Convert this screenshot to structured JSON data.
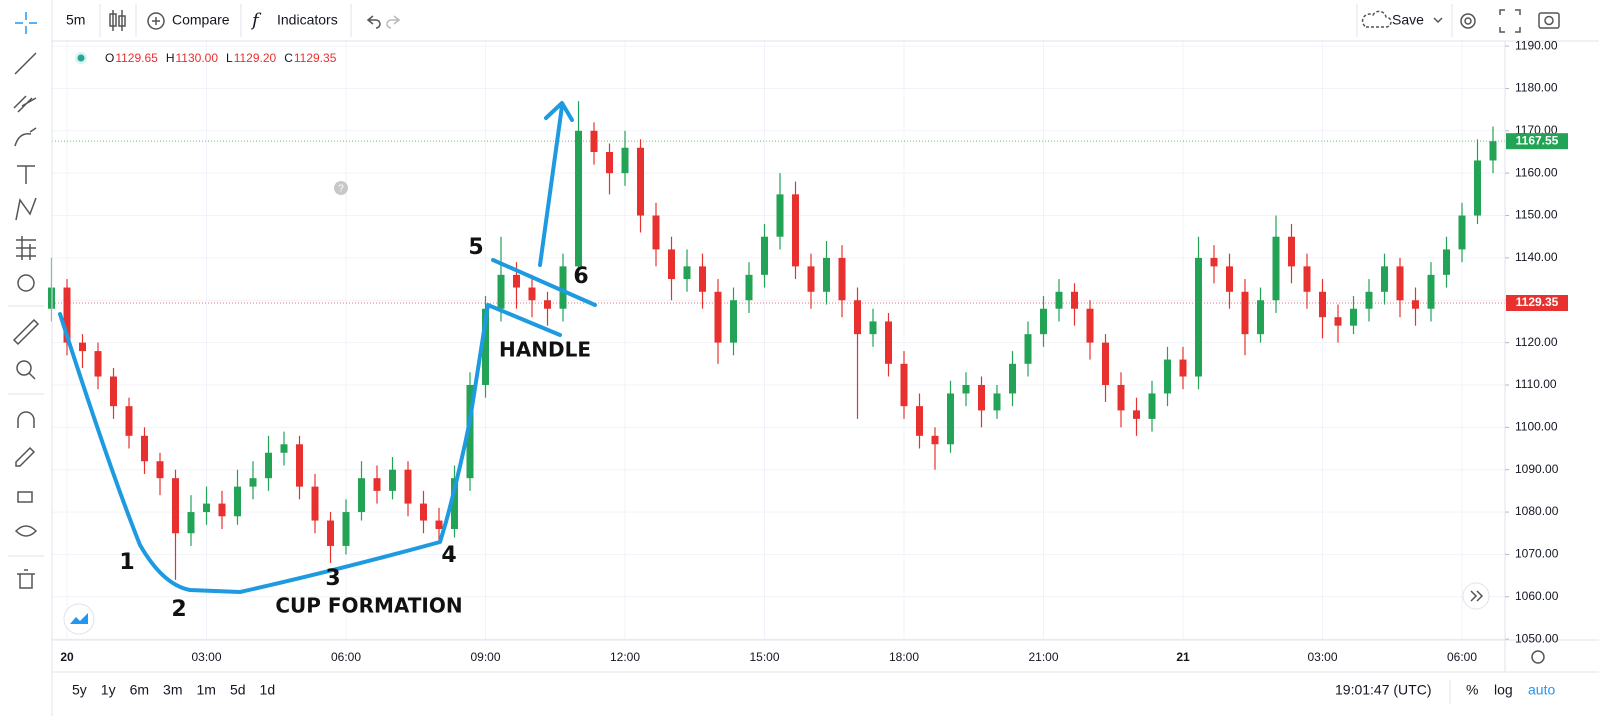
{
  "chart_data": {
    "type": "candlestick",
    "categories": [
      null,
      "20",
      null,
      null,
      null,
      null,
      null,
      null,
      null,
      null,
      "03:00",
      null,
      null,
      null,
      null,
      null,
      null,
      null,
      null,
      "06:00",
      null,
      null,
      null,
      null,
      null,
      null,
      null,
      null,
      "09:00",
      null,
      null,
      null,
      null,
      null,
      null,
      null,
      null,
      "12:00",
      null,
      null,
      null,
      null,
      null,
      null,
      null,
      null,
      "15:00",
      null,
      null,
      null,
      null,
      null,
      null,
      null,
      null,
      "18:00",
      null,
      null,
      null,
      null,
      null,
      null,
      null,
      null,
      "21:00",
      null,
      null,
      null,
      null,
      null,
      null,
      null,
      null,
      "21",
      null,
      null,
      null,
      null,
      null,
      null,
      null,
      null,
      "03:00",
      null,
      null,
      null,
      null,
      null,
      null,
      null,
      null,
      "06:00",
      null,
      null
    ],
    "open": [
      1128,
      1133,
      1120,
      1118,
      1112,
      1105,
      1098,
      1092,
      1088,
      1075,
      1080,
      1082,
      1079,
      1086,
      1088,
      1094,
      1096,
      1086,
      1078,
      1072,
      1080,
      1088,
      1085,
      1090,
      1082,
      1078,
      1076,
      1088,
      1110,
      1128,
      1136,
      1133,
      1130,
      1128,
      1138,
      1170,
      1165,
      1160,
      1166,
      1150,
      1142,
      1135,
      1138,
      1132,
      1120,
      1130,
      1136,
      1145,
      1155,
      1138,
      1132,
      1140,
      1130,
      1122,
      1125,
      1115,
      1105,
      1098,
      1096,
      1108,
      1110,
      1104,
      1108,
      1115,
      1122,
      1128,
      1132,
      1128,
      1120,
      1110,
      1104,
      1102,
      1108,
      1116,
      1112,
      1140,
      1138,
      1132,
      1122,
      1130,
      1145,
      1138,
      1132,
      1126,
      1124,
      1128,
      1132,
      1138,
      1130,
      1128,
      1136,
      1142,
      1150,
      1163
    ],
    "high": [
      1140,
      1135,
      1122,
      1120,
      1114,
      1107,
      1100,
      1094,
      1090,
      1084,
      1086,
      1085,
      1090,
      1092,
      1098,
      1099,
      1098,
      1089,
      1080,
      1083,
      1092,
      1091,
      1093,
      1092,
      1085,
      1081,
      1091,
      1113,
      1131,
      1145,
      1139,
      1136,
      1132,
      1141,
      1177,
      1172,
      1167,
      1170,
      1168,
      1153,
      1145,
      1142,
      1141,
      1135,
      1133,
      1139,
      1148,
      1160,
      1158,
      1141,
      1144,
      1143,
      1133,
      1128,
      1127,
      1118,
      1108,
      1100,
      1111,
      1113,
      1112,
      1110,
      1118,
      1125,
      1131,
      1135,
      1134,
      1130,
      1122,
      1113,
      1107,
      1111,
      1119,
      1119,
      1145,
      1143,
      1141,
      1135,
      1133,
      1150,
      1148,
      1141,
      1135,
      1129,
      1131,
      1135,
      1141,
      1140,
      1133,
      1139,
      1145,
      1153,
      1168,
      1171
    ],
    "low": [
      1125,
      1117,
      1114,
      1109,
      1102,
      1095,
      1089,
      1084,
      1064,
      1072,
      1077,
      1076,
      1077,
      1083,
      1085,
      1091,
      1083,
      1075,
      1068,
      1070,
      1078,
      1082,
      1083,
      1079,
      1075,
      1073,
      1074,
      1085,
      1107,
      1125,
      1128,
      1126,
      1124,
      1125,
      1135,
      1162,
      1155,
      1157,
      1146,
      1138,
      1130,
      1132,
      1128,
      1115,
      1117,
      1127,
      1133,
      1142,
      1135,
      1128,
      1129,
      1126,
      1102,
      1119,
      1112,
      1102,
      1095,
      1090,
      1094,
      1105,
      1100,
      1102,
      1105,
      1112,
      1119,
      1125,
      1124,
      1116,
      1106,
      1100,
      1098,
      1099,
      1105,
      1109,
      1109,
      1134,
      1128,
      1117,
      1120,
      1127,
      1134,
      1128,
      1121,
      1120,
      1122,
      1125,
      1129,
      1126,
      1124,
      1125,
      1133,
      1139,
      1148,
      1160
    ],
    "close": [
      1133,
      1120,
      1118,
      1112,
      1105,
      1098,
      1092,
      1088,
      1075,
      1080,
      1082,
      1079,
      1086,
      1088,
      1094,
      1096,
      1086,
      1078,
      1072,
      1080,
      1088,
      1085,
      1090,
      1082,
      1078,
      1076,
      1088,
      1110,
      1128,
      1136,
      1133,
      1130,
      1128,
      1138,
      1170,
      1165,
      1160,
      1166,
      1150,
      1142,
      1135,
      1138,
      1132,
      1120,
      1130,
      1136,
      1145,
      1155,
      1138,
      1132,
      1140,
      1130,
      1122,
      1125,
      1115,
      1105,
      1098,
      1096,
      1108,
      1110,
      1104,
      1108,
      1115,
      1122,
      1128,
      1132,
      1128,
      1120,
      1110,
      1104,
      1102,
      1108,
      1116,
      1112,
      1140,
      1138,
      1132,
      1122,
      1130,
      1145,
      1138,
      1132,
      1126,
      1124,
      1128,
      1132,
      1138,
      1130,
      1128,
      1136,
      1142,
      1150,
      1163,
      1167.55
    ],
    "up_color": "#22a355",
    "down_color": "#e8312f",
    "ylim": [
      1049.8,
      1191.2
    ],
    "yticks": [
      {
        "value": 1050,
        "label": "1050.00"
      },
      {
        "value": 1060,
        "label": "1060.00"
      },
      {
        "value": 1070,
        "label": "1070.00"
      },
      {
        "value": 1080,
        "label": "1080.00"
      },
      {
        "value": 1090,
        "label": "1090.00"
      },
      {
        "value": 1100,
        "label": "1100.00"
      },
      {
        "value": 1110,
        "label": "1110.00"
      },
      {
        "value": 1120,
        "label": "1120.00"
      },
      {
        "value": 1130,
        "label": "1130.00"
      },
      {
        "value": 1140,
        "label": "1140.00"
      },
      {
        "value": 1150,
        "label": "1150.00"
      },
      {
        "value": 1160,
        "label": "1160.00"
      },
      {
        "value": 1170,
        "label": "1170.00"
      },
      {
        "value": 1180,
        "label": "1180.00"
      },
      {
        "value": 1190,
        "label": "1190.00"
      }
    ],
    "grid": true,
    "log_scale": false,
    "price_markers": [
      {
        "value": 1167.55,
        "color": "#22a355"
      },
      {
        "value": 1129.35,
        "color": "#e8312f"
      }
    ],
    "annotations": [
      "1",
      "2",
      "3",
      "4",
      "5",
      "6",
      "CUP FORMATION",
      "HANDLE"
    ]
  },
  "ohlc_header": [
    {
      "key": "O",
      "value": "1129.65"
    },
    {
      "key": "H",
      "value": "1130.00"
    },
    {
      "key": "L",
      "value": "1129.20"
    },
    {
      "key": "C",
      "value": "1129.35"
    }
  ],
  "toolbar": {
    "interval": "5m",
    "compare": "Compare",
    "indicators": "Indicators",
    "save": "Save"
  },
  "bottom_bar": {
    "ranges": [
      "5y",
      "1y",
      "6m",
      "3m",
      "1m",
      "5d",
      "1d"
    ],
    "clock": "19:01:47 (UTC)",
    "percent": "%",
    "log": "log",
    "auto": "auto"
  }
}
